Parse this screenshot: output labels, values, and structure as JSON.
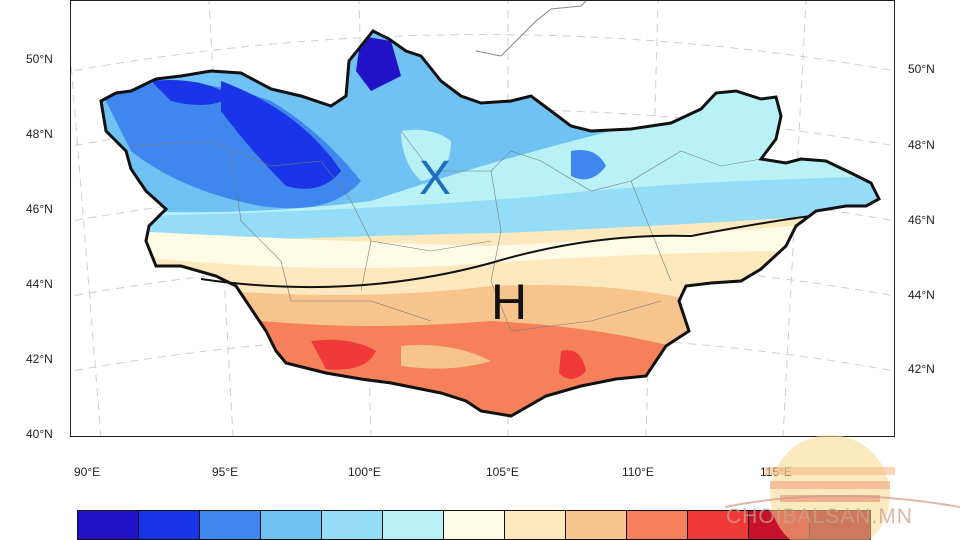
{
  "map": {
    "lat_labels_left": [
      "50°N",
      "48°N",
      "46°N",
      "44°N",
      "42°N",
      "40°N"
    ],
    "lat_labels_right": [
      "50°N",
      "48°N",
      "46°N",
      "44°N",
      "42°N"
    ],
    "lon_labels": [
      "90°E",
      "95°E",
      "100°E",
      "105°E",
      "110°E",
      "115°E"
    ],
    "zone_cold": "X",
    "zone_hot": "H",
    "colors": {
      "border": "#111111",
      "cold_label": "#1f6fc0",
      "hot_label": "#111111"
    }
  },
  "colorbar": {
    "colors": [
      "#2213c9",
      "#1a35e8",
      "#3f86ef",
      "#70c2f4",
      "#95ddf6",
      "#b8f2f6",
      "#fffbe6",
      "#fde9bd",
      "#f8c48e",
      "#f58059",
      "#f03a3a",
      "#c8102c",
      "#9c0626"
    ]
  },
  "logo": {
    "text": "CHOIBALSAN.MN"
  }
}
